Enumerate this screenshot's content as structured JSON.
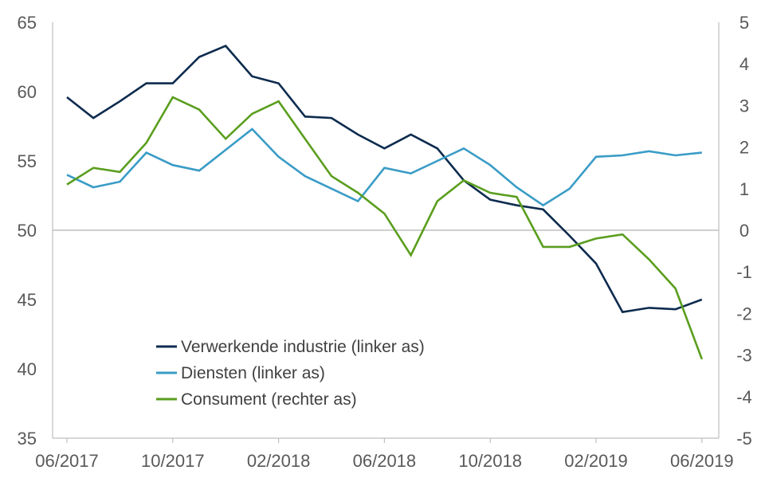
{
  "chart_data": {
    "type": "line",
    "x": [
      "06/2017",
      "07/2017",
      "08/2017",
      "09/2017",
      "10/2017",
      "11/2017",
      "12/2017",
      "01/2018",
      "02/2018",
      "03/2018",
      "04/2018",
      "05/2018",
      "06/2018",
      "07/2018",
      "08/2018",
      "09/2018",
      "10/2018",
      "11/2018",
      "12/2018",
      "01/2019",
      "02/2019",
      "03/2019",
      "04/2019",
      "05/2019",
      "06/2019"
    ],
    "x_tick_labels": [
      "06/2017",
      "10/2017",
      "02/2018",
      "06/2018",
      "10/2018",
      "02/2019",
      "06/2019"
    ],
    "left_axis": {
      "ylim": [
        35,
        65
      ],
      "ticks": [
        35,
        40,
        45,
        50,
        55,
        60,
        65
      ]
    },
    "right_axis": {
      "ylim": [
        -5,
        5
      ],
      "ticks": [
        -5,
        -4,
        -3,
        -2,
        -1,
        0,
        1,
        2,
        3,
        4,
        5
      ]
    },
    "reference_line": {
      "axis": "left",
      "value": 50
    },
    "series": [
      {
        "name": "Verwerkende industrie (linker as)",
        "axis": "left",
        "color": "#0d2b4e",
        "values": [
          59.6,
          58.1,
          59.3,
          60.6,
          60.6,
          62.5,
          63.3,
          61.1,
          60.6,
          58.2,
          58.1,
          56.9,
          55.9,
          56.9,
          55.9,
          53.6,
          52.2,
          51.8,
          51.5,
          49.6,
          47.6,
          44.1,
          44.4,
          44.3,
          45.0
        ]
      },
      {
        "name": "Diensten (linker as)",
        "axis": "left",
        "color": "#3a9cc6",
        "values": [
          54.0,
          53.1,
          53.5,
          55.6,
          54.7,
          54.3,
          55.8,
          57.3,
          55.3,
          53.9,
          53.0,
          52.1,
          54.5,
          54.1,
          55.0,
          55.9,
          54.7,
          53.1,
          51.8,
          53.0,
          55.3,
          55.4,
          55.7,
          55.4,
          55.6
        ]
      },
      {
        "name": "Consument (rechter as)",
        "axis": "right",
        "color": "#5a9e1e",
        "values": [
          1.1,
          1.5,
          1.4,
          2.1,
          3.2,
          2.9,
          2.2,
          2.8,
          3.1,
          2.2,
          1.3,
          0.9,
          0.4,
          -0.6,
          0.7,
          1.2,
          0.9,
          0.8,
          -0.4,
          -0.4,
          -0.2,
          -0.1,
          -0.7,
          -1.4,
          -3.1
        ]
      }
    ],
    "legend_position": "lower-left",
    "grid": false
  }
}
